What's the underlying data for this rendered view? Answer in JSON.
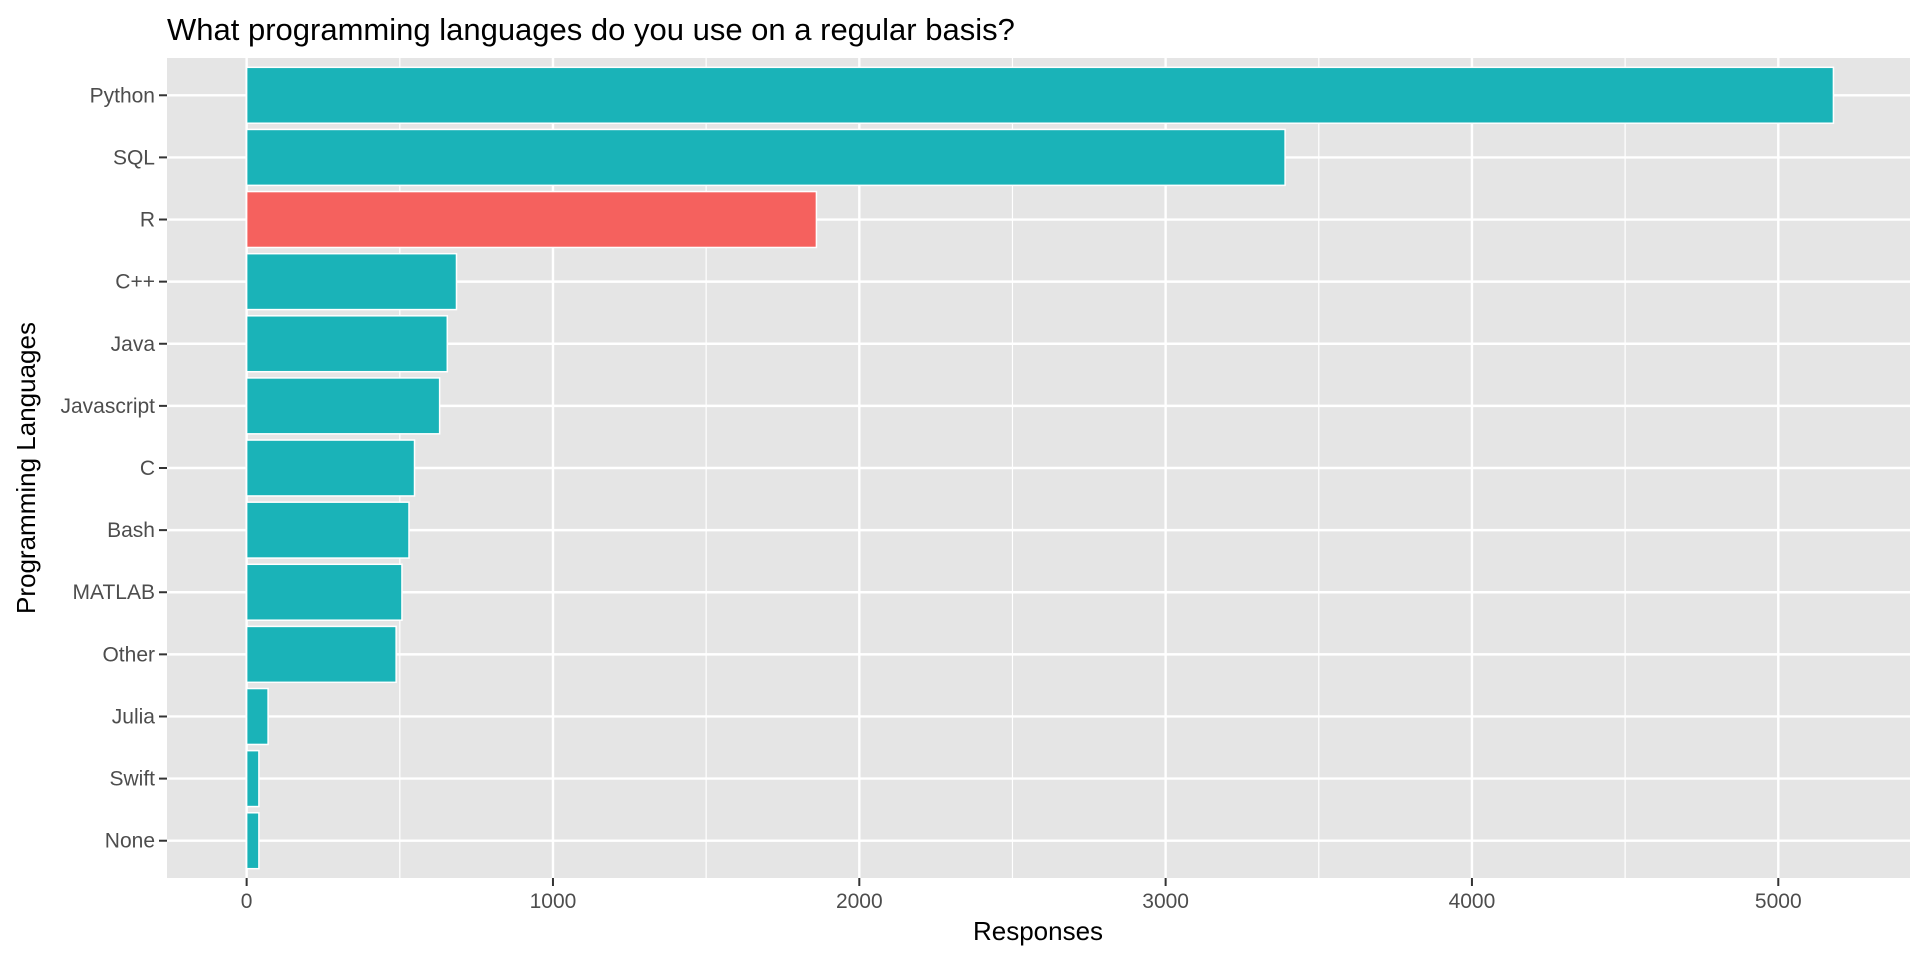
{
  "chart_data": {
    "type": "bar",
    "orientation": "horizontal",
    "title": "What programming languages do you use on a regular basis?",
    "xlabel": "Responses",
    "ylabel": "Programming Languages",
    "categories": [
      "Python",
      "SQL",
      "R",
      "C++",
      "Java",
      "Javascript",
      "C",
      "Bash",
      "MATLAB",
      "Other",
      "Julia",
      "Swift",
      "None"
    ],
    "values": [
      5180,
      3390,
      1860,
      685,
      655,
      630,
      548,
      530,
      507,
      488,
      70,
      40,
      40
    ],
    "highlight_category": "R",
    "xlim": [
      -260,
      5430
    ],
    "x_ticks": [
      0,
      1000,
      2000,
      3000,
      4000,
      5000
    ],
    "x_minor_ticks": [
      500,
      1500,
      2500,
      3500,
      4500
    ],
    "x_tick_labels": [
      "0",
      "1000",
      "2000",
      "3000",
      "4000",
      "5000"
    ],
    "grid": true,
    "legend": "none",
    "colors": {
      "bar": "#1AB3B8",
      "highlight": "#F5615E",
      "panel_background": "#E5E5E5",
      "grid_line": "#FFFFFF"
    }
  }
}
